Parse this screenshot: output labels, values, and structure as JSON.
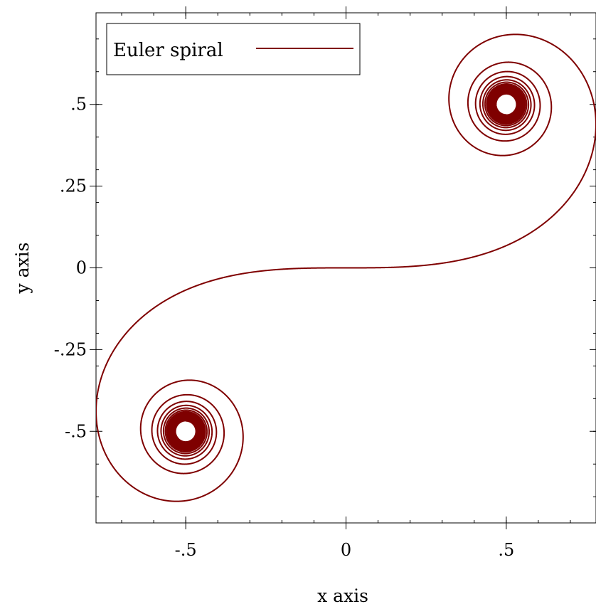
{
  "chart_data": {
    "type": "line",
    "title": "",
    "xlabel": "x axis",
    "ylabel": "y axis",
    "xlim": [
      -0.78,
      0.78
    ],
    "ylim": [
      -0.78,
      0.78
    ],
    "grid": false,
    "legend": {
      "position": "top-left",
      "entries": [
        "Euler spiral"
      ]
    },
    "x_ticks": [
      {
        "value": -0.5,
        "label": "-.5"
      },
      {
        "value": 0,
        "label": "0"
      },
      {
        "value": 0.5,
        "label": ".5"
      }
    ],
    "y_ticks": [
      {
        "value": 0.5,
        "label": ".5"
      },
      {
        "value": 0.25,
        "label": ".25"
      },
      {
        "value": 0,
        "label": "0"
      },
      {
        "value": -0.25,
        "label": "-.25"
      },
      {
        "value": -0.5,
        "label": "-.5"
      }
    ],
    "minor_tick_step": 0.1,
    "series": [
      {
        "name": "Euler spiral",
        "color": "#7f0000",
        "function": "x(t) = ∫0..t cos(πs²/2) ds, y(t) = ∫0..t sin(πs²/2) ds",
        "t_range": [
          -10,
          10
        ]
      }
    ]
  }
}
